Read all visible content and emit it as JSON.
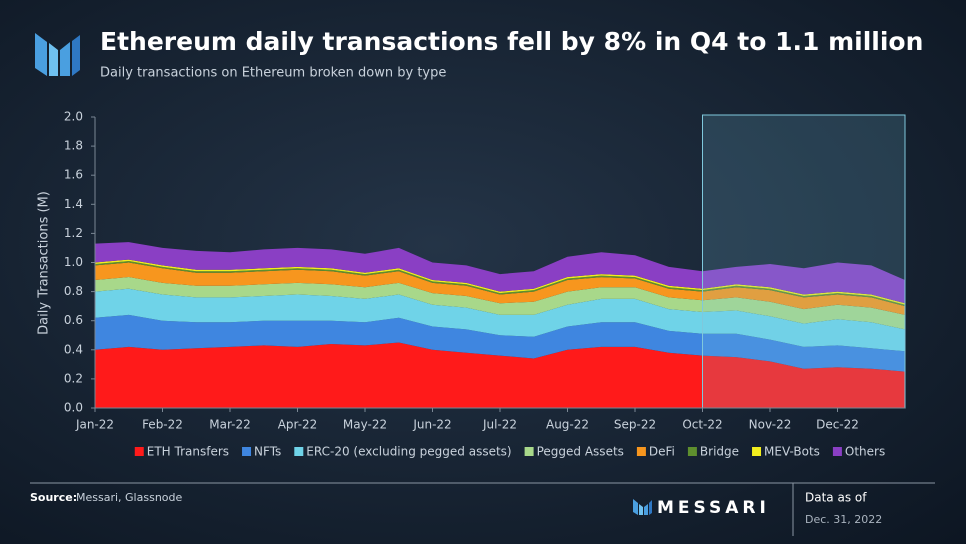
{
  "chart_data": {
    "type": "stacked_area",
    "title": "Ethereum daily transactions fell by 8% in Q4 to 1.1 million",
    "subtitle": "Daily transactions on Ethereum broken down by type",
    "y_label": "Daily Transactions (M)",
    "categories": [
      "Jan-22",
      null,
      "Feb-22",
      null,
      "Mar-22",
      null,
      "Apr-22",
      null,
      "May-22",
      null,
      "Jun-22",
      null,
      "Jul-22",
      null,
      "Aug-22",
      null,
      "Sep-22",
      null,
      "Oct-22",
      null,
      "Nov-22",
      null,
      "Dec-22",
      null,
      null
    ],
    "ylim": [
      0,
      2.0
    ],
    "yticks": [
      {
        "value": 0,
        "label": "0.0"
      },
      0.2,
      0.4,
      0.6,
      0.8,
      {
        "value": 1,
        "label": "1.0"
      },
      1.2,
      1.4,
      1.6,
      1.8,
      {
        "value": 2,
        "label": "2.0"
      }
    ],
    "grid": false,
    "highlight_from": "Oct-22",
    "series": [
      {
        "name": "ETH Transfers",
        "color": "#ff1a1a",
        "values": [
          0.4,
          0.42,
          0.4,
          0.41,
          0.42,
          0.43,
          0.42,
          0.44,
          0.43,
          0.45,
          0.4,
          0.38,
          0.36,
          0.34,
          0.4,
          0.42,
          0.42,
          0.38,
          0.36,
          0.35,
          0.32,
          0.27,
          0.28,
          0.27,
          0.25
        ]
      },
      {
        "name": "NFTs",
        "color": "#3f86e0",
        "values": [
          0.22,
          0.22,
          0.2,
          0.18,
          0.17,
          0.17,
          0.18,
          0.16,
          0.16,
          0.17,
          0.16,
          0.16,
          0.14,
          0.15,
          0.16,
          0.17,
          0.17,
          0.15,
          0.15,
          0.16,
          0.15,
          0.15,
          0.15,
          0.14,
          0.14
        ]
      },
      {
        "name": "ERC-20 (excluding pegged assets)",
        "color": "#6fd3e8",
        "values": [
          0.18,
          0.18,
          0.18,
          0.17,
          0.17,
          0.17,
          0.18,
          0.17,
          0.16,
          0.16,
          0.15,
          0.15,
          0.14,
          0.15,
          0.15,
          0.16,
          0.16,
          0.15,
          0.15,
          0.16,
          0.16,
          0.16,
          0.18,
          0.18,
          0.15
        ]
      },
      {
        "name": "Pegged Assets",
        "color": "#a8d88a",
        "values": [
          0.08,
          0.08,
          0.08,
          0.08,
          0.08,
          0.08,
          0.08,
          0.08,
          0.08,
          0.08,
          0.08,
          0.08,
          0.08,
          0.09,
          0.09,
          0.08,
          0.08,
          0.08,
          0.08,
          0.09,
          0.1,
          0.1,
          0.1,
          0.1,
          0.1
        ]
      },
      {
        "name": "DeFi",
        "color": "#f7961e",
        "values": [
          0.1,
          0.1,
          0.1,
          0.09,
          0.09,
          0.09,
          0.09,
          0.09,
          0.08,
          0.08,
          0.07,
          0.07,
          0.06,
          0.07,
          0.08,
          0.07,
          0.06,
          0.06,
          0.06,
          0.07,
          0.08,
          0.08,
          0.07,
          0.07,
          0.06
        ]
      },
      {
        "name": "Bridge",
        "color": "#5e8f2e",
        "values": [
          0.01,
          0.01,
          0.01,
          0.01,
          0.01,
          0.01,
          0.01,
          0.01,
          0.01,
          0.01,
          0.01,
          0.01,
          0.01,
          0.01,
          0.01,
          0.01,
          0.01,
          0.01,
          0.01,
          0.01,
          0.01,
          0.01,
          0.01,
          0.01,
          0.01
        ]
      },
      {
        "name": "MEV-Bots",
        "color": "#f2ee1e",
        "values": [
          0.01,
          0.01,
          0.01,
          0.01,
          0.01,
          0.01,
          0.01,
          0.01,
          0.01,
          0.01,
          0.01,
          0.01,
          0.01,
          0.01,
          0.01,
          0.01,
          0.01,
          0.01,
          0.01,
          0.01,
          0.01,
          0.01,
          0.01,
          0.01,
          0.01
        ]
      },
      {
        "name": "Others",
        "color": "#8a3fc4",
        "values": [
          0.13,
          0.12,
          0.12,
          0.13,
          0.12,
          0.13,
          0.13,
          0.13,
          0.13,
          0.14,
          0.12,
          0.12,
          0.12,
          0.12,
          0.14,
          0.15,
          0.14,
          0.13,
          0.12,
          0.12,
          0.16,
          0.18,
          0.2,
          0.2,
          0.16
        ]
      }
    ],
    "source_label": "Source:",
    "source": "Messari, Glassnode",
    "brand": "MESSARI",
    "date_label": "Data as of",
    "date": "Dec. 31, 2022"
  }
}
